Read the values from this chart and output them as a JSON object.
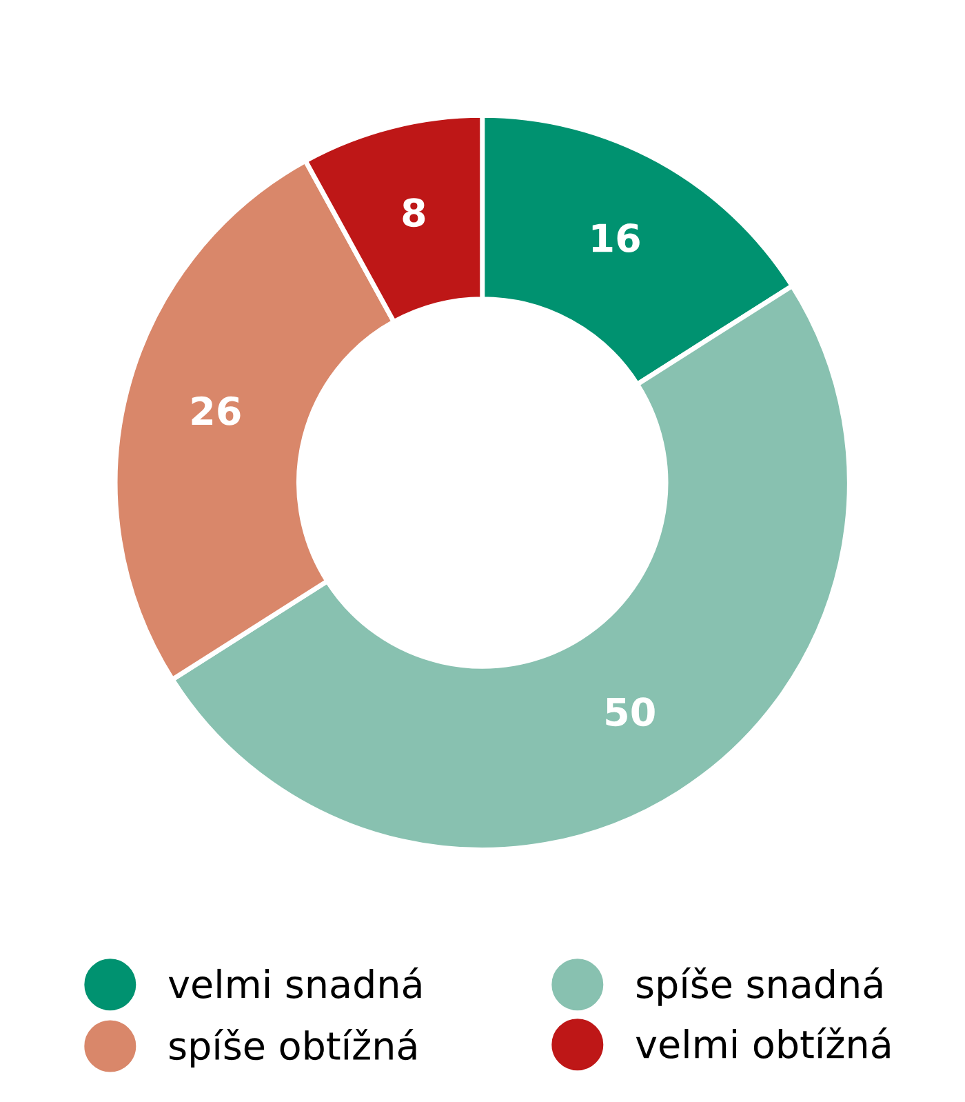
{
  "chart_data": {
    "type": "donut",
    "categories": [
      "velmi snadná",
      "spíše snadná",
      "spíše obtížná",
      "velmi obtížná"
    ],
    "values": [
      16,
      50,
      26,
      8
    ],
    "colors": [
      "#009270",
      "#88c1b0",
      "#d9876a",
      "#be1717"
    ],
    "data_labels": true,
    "legend": "bottom"
  }
}
